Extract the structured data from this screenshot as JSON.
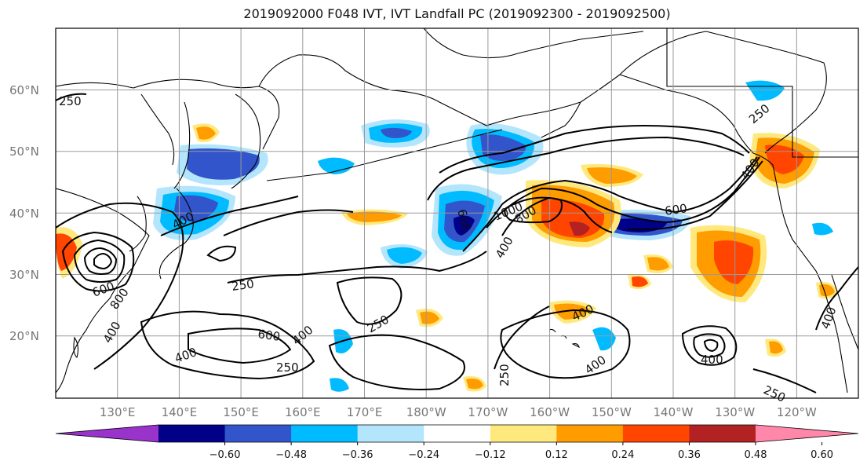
{
  "title": "2019092000 F048 IVT, IVT Landfall PC (2019092300 - 2019092500)",
  "lat_labels": [
    "60°N",
    "50°N",
    "40°N",
    "30°N",
    "20°N"
  ],
  "lon_labels": [
    "130°E",
    "140°E",
    "150°E",
    "160°E",
    "170°E",
    "180°W",
    "170°W",
    "160°W",
    "150°W",
    "140°W",
    "130°W",
    "120°W"
  ],
  "colorbar": {
    "ticks": [
      "−0.60",
      "−0.48",
      "−0.36",
      "−0.24",
      "−0.12",
      "0.12",
      "0.24",
      "0.36",
      "0.48",
      "0.60"
    ],
    "colors": [
      "#9933cc",
      "#000088",
      "#3355cc",
      "#00bbff",
      "#b3e5fc",
      "#ffffff",
      "#ffe97f",
      "#ff9d00",
      "#ff4500",
      "#b22222",
      "#ff88aa"
    ]
  },
  "contour_labels": [
    {
      "text": "250"
    },
    {
      "text": "400"
    },
    {
      "text": "250"
    },
    {
      "text": "600"
    },
    {
      "text": "400"
    },
    {
      "text": "400"
    },
    {
      "text": "250"
    },
    {
      "text": "250"
    },
    {
      "text": "600"
    },
    {
      "text": "1000"
    },
    {
      "text": "800"
    },
    {
      "text": "400"
    },
    {
      "text": "400"
    },
    {
      "text": "400"
    },
    {
      "text": "250"
    },
    {
      "text": "600"
    },
    {
      "text": "400"
    },
    {
      "text": "250"
    },
    {
      "text": "400"
    },
    {
      "text": "400"
    },
    {
      "text": "250"
    },
    {
      "text": "600"
    },
    {
      "text": "800"
    },
    {
      "text": "400"
    }
  ]
}
